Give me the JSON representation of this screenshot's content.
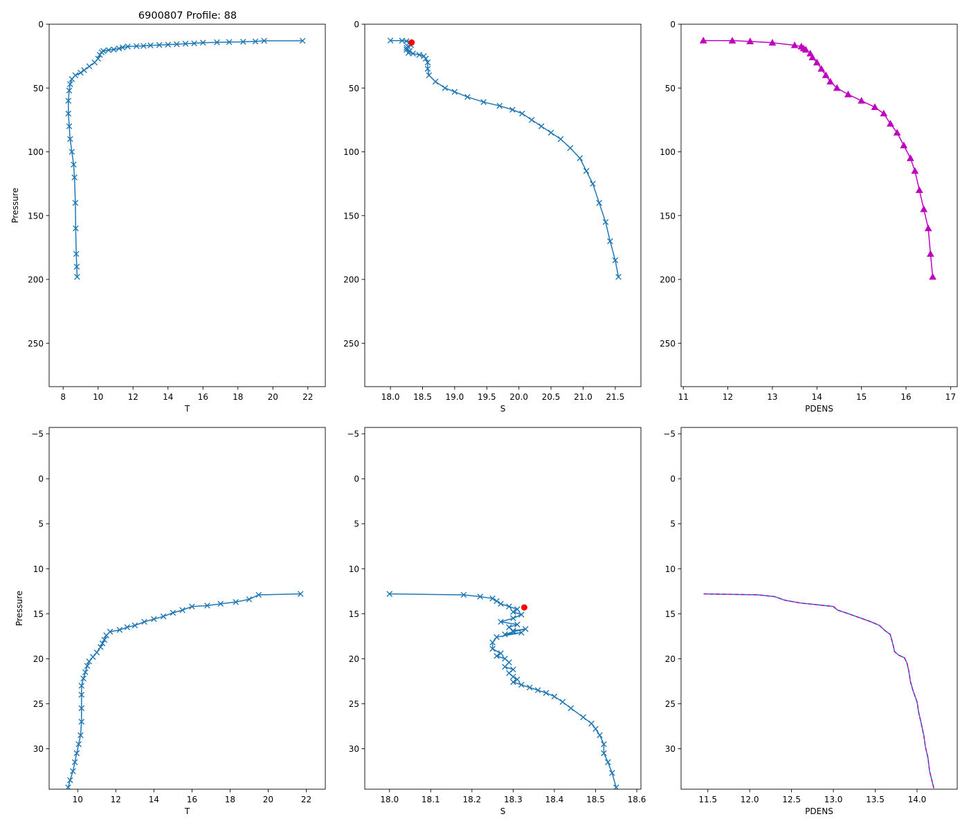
{
  "figure": {
    "title": "6900807 Profile: 88",
    "line_color": "#1f77b4",
    "highlight_color": "#ff0000",
    "pdens_color": "#bf00bf"
  },
  "chart_data": [
    {
      "id": "top-t",
      "type": "line",
      "marker": "x",
      "title": "6900807 Profile: 88",
      "xlabel": "T",
      "ylabel": "Pressure",
      "xlim": [
        7.2,
        23.0
      ],
      "ylim": [
        284,
        0
      ],
      "xticks": [
        8,
        10,
        12,
        14,
        16,
        18,
        20,
        22
      ],
      "yticks": [
        0,
        50,
        100,
        150,
        200,
        250
      ],
      "series": [
        {
          "name": "T",
          "x": [
            21.7,
            19.5,
            19.0,
            18.3,
            17.5,
            16.8,
            16.0,
            15.5,
            15.0,
            14.5,
            14.0,
            13.5,
            13.0,
            12.6,
            12.2,
            11.7,
            11.4,
            11.2,
            10.9,
            10.6,
            10.3,
            10.2,
            10.1,
            10.0,
            9.8,
            9.5,
            9.2,
            9.0,
            8.7,
            8.5,
            8.4,
            8.35,
            8.3,
            8.3,
            8.35,
            8.4,
            8.5,
            8.6,
            8.65,
            8.7,
            8.72,
            8.75,
            8.78,
            8.8
          ],
          "y": [
            13,
            13,
            13.5,
            13.8,
            14,
            14.2,
            14.5,
            15,
            15.3,
            15.7,
            16,
            16.3,
            16.6,
            17,
            17.2,
            17.5,
            18.2,
            19,
            19.8,
            20.3,
            21,
            22,
            24,
            27,
            30,
            33,
            36,
            38,
            40,
            43,
            47,
            52,
            60,
            70,
            80,
            90,
            100,
            110,
            120,
            140,
            160,
            180,
            190,
            198
          ]
        }
      ]
    },
    {
      "id": "top-s",
      "type": "line",
      "marker": "x",
      "xlabel": "S",
      "ylabel": "",
      "xlim": [
        17.6,
        21.9
      ],
      "ylim": [
        284,
        0
      ],
      "xticks": [
        18.0,
        18.5,
        19.0,
        19.5,
        20.0,
        20.5,
        21.0,
        21.5
      ],
      "yticks": [
        0,
        50,
        100,
        150,
        200,
        250
      ],
      "highlight": {
        "x": 18.33,
        "y": 14.3
      },
      "series": [
        {
          "name": "S",
          "x": [
            18.0,
            18.18,
            18.25,
            18.3,
            18.32,
            18.27,
            18.25,
            18.25,
            18.3,
            18.28,
            18.35,
            18.45,
            18.52,
            18.55,
            18.58,
            18.58,
            18.6,
            18.7,
            18.85,
            19.0,
            19.2,
            19.45,
            19.7,
            19.9,
            20.05,
            20.2,
            20.35,
            20.5,
            20.65,
            20.8,
            20.95,
            21.05,
            21.15,
            21.25,
            21.35,
            21.42,
            21.5,
            21.55
          ],
          "y": [
            12.8,
            12.9,
            13.3,
            14.3,
            16.5,
            17.5,
            18.5,
            20,
            21,
            22.5,
            23,
            24,
            25,
            27,
            30,
            35,
            40,
            45,
            50,
            53,
            57,
            61,
            64,
            67,
            70,
            75,
            80,
            85,
            90,
            97,
            105,
            115,
            125,
            140,
            155,
            170,
            185,
            198
          ]
        }
      ]
    },
    {
      "id": "top-pdens",
      "type": "line",
      "marker": "^",
      "xlabel": "PDENS",
      "ylabel": "",
      "xlim": [
        10.95,
        17.15
      ],
      "ylim": [
        284,
        0
      ],
      "xticks": [
        11,
        12,
        13,
        14,
        15,
        16,
        17
      ],
      "yticks": [
        0,
        50,
        100,
        150,
        200,
        250
      ],
      "series": [
        {
          "name": "PDENS",
          "x": [
            11.45,
            12.1,
            12.5,
            13.0,
            13.5,
            13.65,
            13.7,
            13.75,
            13.85,
            13.9,
            14.0,
            14.1,
            14.2,
            14.3,
            14.45,
            14.7,
            15.0,
            15.3,
            15.5,
            15.65,
            15.8,
            15.95,
            16.1,
            16.2,
            16.3,
            16.4,
            16.5,
            16.55,
            16.6
          ],
          "y": [
            12.8,
            12.9,
            13.5,
            14.5,
            16.5,
            17.5,
            19,
            20,
            23,
            26,
            30,
            35,
            40,
            45,
            50,
            55,
            60,
            65,
            70,
            78,
            85,
            95,
            105,
            115,
            130,
            145,
            160,
            180,
            198
          ]
        }
      ]
    },
    {
      "id": "bottom-t",
      "type": "line",
      "marker": "x",
      "xlabel": "T",
      "ylabel": "Pressure",
      "xlim": [
        8.5,
        23.0
      ],
      "ylim": [
        34.5,
        -5.7
      ],
      "xticks": [
        10,
        12,
        14,
        16,
        18,
        20,
        22
      ],
      "yticks": [
        -5,
        0,
        5,
        10,
        15,
        20,
        25,
        30
      ],
      "series": [
        {
          "name": "T",
          "x": [
            21.7,
            19.5,
            19.0,
            18.3,
            17.5,
            16.8,
            16.0,
            15.5,
            15.0,
            14.5,
            14.0,
            13.5,
            13.0,
            12.6,
            12.2,
            11.7,
            11.5,
            11.4,
            11.3,
            11.2,
            11.0,
            10.8,
            10.6,
            10.5,
            10.4,
            10.3,
            10.2,
            10.2,
            10.2,
            10.2,
            10.15,
            10.05,
            9.95,
            9.85,
            9.75,
            9.6,
            9.5
          ],
          "y": [
            12.8,
            12.9,
            13.4,
            13.7,
            13.9,
            14.1,
            14.2,
            14.6,
            14.9,
            15.3,
            15.6,
            15.9,
            16.3,
            16.5,
            16.8,
            17.0,
            17.4,
            17.9,
            18.3,
            18.7,
            19.3,
            19.8,
            20.3,
            20.8,
            21.5,
            22.2,
            23.0,
            24.0,
            25.5,
            27.0,
            28.5,
            29.5,
            30.5,
            31.5,
            32.5,
            33.5,
            34.3
          ]
        }
      ]
    },
    {
      "id": "bottom-s",
      "type": "line",
      "marker": "x",
      "xlabel": "S",
      "ylabel": "",
      "xlim": [
        17.94,
        18.61
      ],
      "ylim": [
        34.5,
        -5.7
      ],
      "xticks": [
        18.0,
        18.1,
        18.2,
        18.3,
        18.4,
        18.5,
        18.6
      ],
      "yticks": [
        -5,
        0,
        5,
        10,
        15,
        20,
        25,
        30
      ],
      "highlight": {
        "x": 18.327,
        "y": 14.3
      },
      "series": [
        {
          "name": "S",
          "x": [
            18.0,
            18.18,
            18.22,
            18.25,
            18.26,
            18.27,
            18.29,
            18.31,
            18.3,
            18.32,
            18.3,
            18.27,
            18.31,
            18.29,
            18.3,
            18.33,
            18.3,
            18.28,
            18.32,
            18.26,
            18.25,
            18.25,
            18.27,
            18.26,
            18.28,
            18.29,
            18.28,
            18.3,
            18.29,
            18.3,
            18.31,
            18.3,
            18.32,
            18.34,
            18.36,
            18.38,
            18.4,
            18.42,
            18.44,
            18.47,
            18.49,
            18.5,
            18.51,
            18.52,
            18.52,
            18.53,
            18.54,
            18.55
          ],
          "y": [
            12.8,
            12.9,
            13.1,
            13.3,
            13.6,
            13.9,
            14.2,
            14.5,
            14.8,
            15.1,
            15.5,
            15.9,
            16.2,
            16.5,
            16.9,
            16.7,
            17.0,
            17.3,
            17.1,
            17.6,
            18.2,
            18.9,
            19.4,
            19.7,
            20.0,
            20.4,
            20.9,
            21.2,
            21.6,
            22.0,
            22.3,
            22.6,
            22.9,
            23.2,
            23.5,
            23.8,
            24.2,
            24.8,
            25.5,
            26.5,
            27.2,
            27.8,
            28.5,
            29.5,
            30.5,
            31.5,
            32.7,
            34.3
          ]
        }
      ]
    },
    {
      "id": "bottom-pdens",
      "type": "line",
      "marker": "dashed",
      "xlabel": "PDENS",
      "ylabel": "",
      "xlim": [
        11.18,
        14.48
      ],
      "ylim": [
        34.5,
        -5.7
      ],
      "xticks": [
        11.5,
        12.0,
        12.5,
        13.0,
        13.5,
        14.0
      ],
      "yticks": [
        -5,
        0,
        5,
        10,
        15,
        20,
        25,
        30
      ],
      "series": [
        {
          "name": "PDENS",
          "x": [
            11.45,
            11.8,
            12.1,
            12.3,
            12.42,
            12.6,
            12.8,
            13.0,
            13.05,
            13.15,
            13.3,
            13.45,
            13.55,
            13.62,
            13.68,
            13.7,
            13.72,
            13.73,
            13.78,
            13.85,
            13.88,
            13.9,
            13.92,
            13.95,
            14.0,
            14.02,
            14.05,
            14.08,
            14.1,
            14.13,
            14.15,
            14.2
          ],
          "y": [
            12.8,
            12.85,
            12.9,
            13.1,
            13.5,
            13.8,
            14.0,
            14.2,
            14.6,
            14.9,
            15.4,
            15.9,
            16.3,
            16.9,
            17.3,
            18.0,
            18.7,
            19.2,
            19.6,
            19.9,
            20.5,
            21.3,
            22.5,
            23.5,
            24.8,
            26.0,
            27.2,
            28.5,
            29.8,
            31.0,
            32.5,
            34.4
          ]
        }
      ]
    }
  ]
}
